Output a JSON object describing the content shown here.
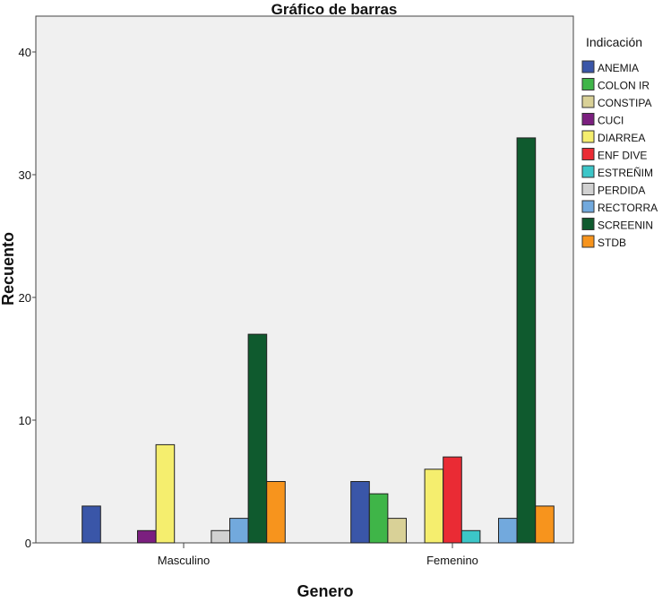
{
  "chart_data": {
    "type": "bar",
    "title": "Gráfico de barras",
    "xlabel": "Genero",
    "ylabel": "Recuento",
    "ylim": [
      0,
      43
    ],
    "yticks": [
      "0",
      "10",
      "20",
      "30",
      "40"
    ],
    "categories": [
      "Masculino",
      "Femenino"
    ],
    "legend_title": "Indicación",
    "legend_position": "right",
    "series": [
      {
        "name": "ANEMIA",
        "color": "#3a56a8",
        "values": [
          3,
          5
        ]
      },
      {
        "name": "COLON IR",
        "color": "#3fb548",
        "values": [
          0,
          4
        ]
      },
      {
        "name": "CONSTIPA",
        "color": "#d9d197",
        "values": [
          0,
          2
        ]
      },
      {
        "name": "CUCI",
        "color": "#7b1f7f",
        "values": [
          1,
          0
        ]
      },
      {
        "name": "DIARREA",
        "color": "#f5ee6e",
        "values": [
          8,
          6
        ]
      },
      {
        "name": "ENF DIVE",
        "color": "#ea2b34",
        "values": [
          0,
          7
        ]
      },
      {
        "name": "ESTREÑIM",
        "color": "#3cc6c8",
        "values": [
          0,
          1
        ]
      },
      {
        "name": "PERDIDA",
        "color": "#d1d1d1",
        "values": [
          1,
          0
        ]
      },
      {
        "name": "RECTORRA",
        "color": "#72a9dd",
        "values": [
          2,
          2
        ]
      },
      {
        "name": "SCREENIN",
        "color": "#0f5a2e",
        "values": [
          17,
          33
        ]
      },
      {
        "name": "STDB",
        "color": "#f7941d",
        "values": [
          5,
          3
        ]
      }
    ]
  }
}
